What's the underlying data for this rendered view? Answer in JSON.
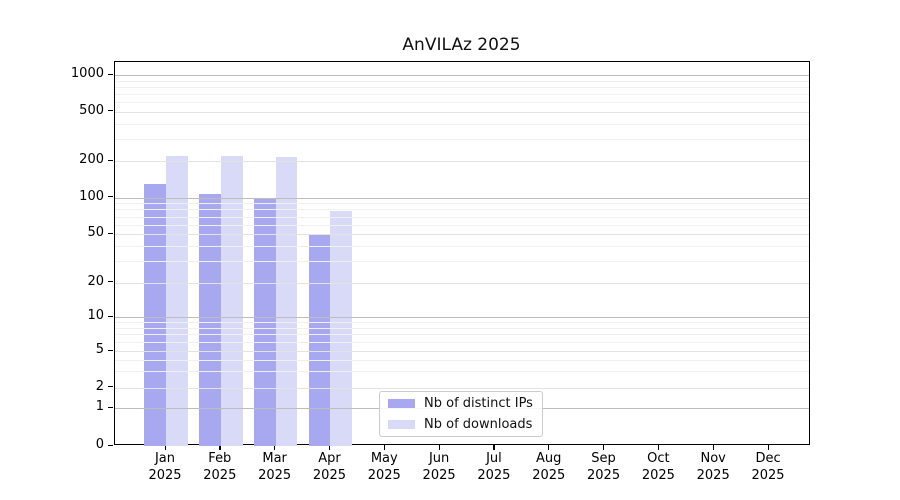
{
  "title": "AnVILAz 2025",
  "chart_data": {
    "type": "bar",
    "title": "AnVILAz 2025",
    "categories": [
      "Jan 2025",
      "Feb 2025",
      "Mar 2025",
      "Apr 2025",
      "May 2025",
      "Jun 2025",
      "Jul 2025",
      "Aug 2025",
      "Sep 2025",
      "Oct 2025",
      "Nov 2025",
      "Dec 2025"
    ],
    "series": [
      {
        "name": "Nb of distinct IPs",
        "color": "#a8a8f0",
        "values": [
          130,
          108,
          100,
          49,
          0,
          0,
          0,
          0,
          0,
          0,
          0,
          0
        ]
      },
      {
        "name": "Nb of downloads",
        "color": "#d9d9f8",
        "values": [
          220,
          220,
          215,
          78,
          0,
          0,
          0,
          0,
          0,
          0,
          0,
          0
        ]
      }
    ],
    "xlabel": "",
    "ylabel": "",
    "yscale": "log-like with zero baseline",
    "y_ticks": [
      0,
      1,
      2,
      5,
      10,
      20,
      50,
      100,
      200,
      500,
      1000
    ],
    "ylim": [
      0,
      1200
    ],
    "grid": true,
    "legend_position": "bottom-center inside plot"
  },
  "colors": {
    "bar_distinct_ips": "#a8a8f0",
    "bar_downloads": "#d9d9f8",
    "grid_decade": "#bdbdbd",
    "grid_major": "#e3e3e3",
    "grid_minor": "#f0f0f0",
    "spine": "#000000",
    "background": "#ffffff"
  }
}
